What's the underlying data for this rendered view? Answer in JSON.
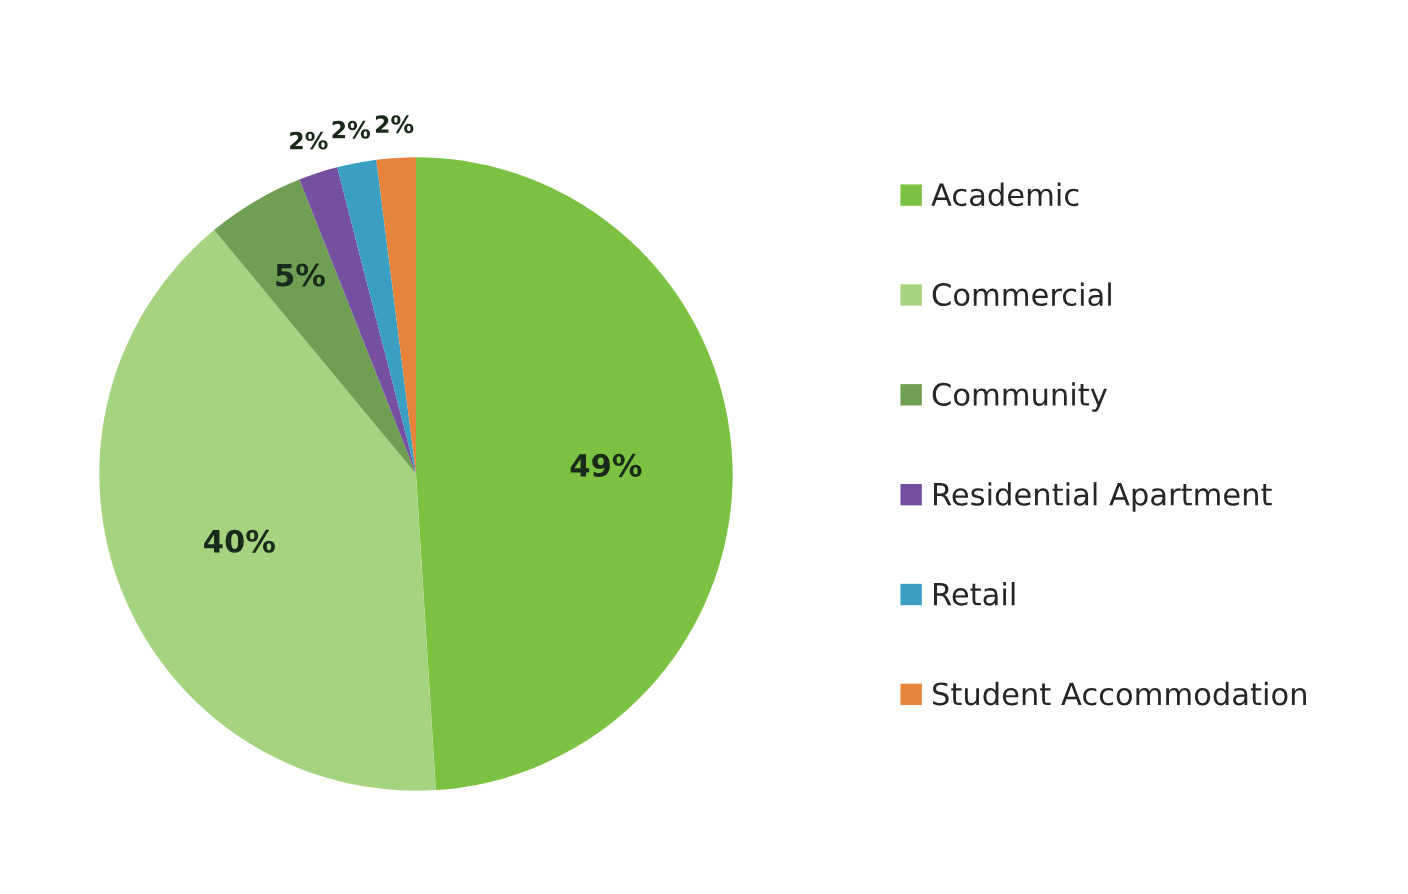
{
  "chart_data": {
    "type": "pie",
    "categories": [
      "Academic",
      "Commercial",
      "Community",
      "Residential Apartment",
      "Retail",
      "Student Accommodation"
    ],
    "values": [
      49,
      40,
      5,
      2,
      2,
      2
    ],
    "value_labels": [
      "49%",
      "40%",
      "5%",
      "2%",
      "2%",
      "2%"
    ],
    "colors": [
      "#7cc242",
      "#a6d380",
      "#6f9f52",
      "#7650a0",
      "#3a9fc2",
      "#e6843c"
    ],
    "legend": "right"
  }
}
